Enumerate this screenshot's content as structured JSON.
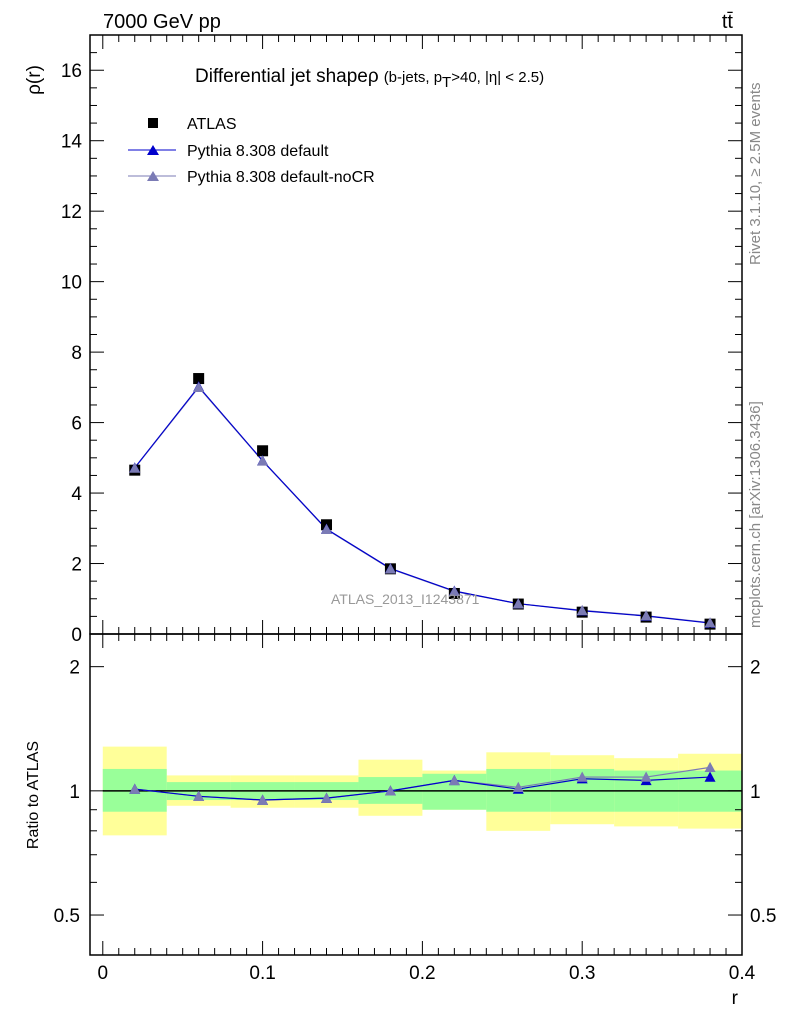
{
  "header": {
    "energy_label": "7000 GeV pp",
    "process_label": "tt̄"
  },
  "side_labels": {
    "rivet": "Rivet 3.1.10, ≥ 2.5M events",
    "mcplots": "mcplots.cern.ch [arXiv:1306.3436]"
  },
  "colors": {
    "data": "#000000",
    "default": "#0000cc",
    "nocr": "#7b7bb5",
    "band_inner": "#99ff99",
    "band_outer": "#ffff99"
  },
  "chart_data": [
    {
      "type": "scatter",
      "title_main": "Differential jet shapeρ",
      "title_cut_prefix": "(b-jets, p",
      "title_cut_sub": "T",
      "title_cut_suffix": ">40, |η| < 2.5)",
      "ylabel": "ρ(r)",
      "xlabel": "r",
      "watermark": "ATLAS_2013_I1243871",
      "ylim": [
        0,
        17
      ],
      "xlim": [
        -0.008,
        0.4
      ],
      "y_ticks": [
        0,
        2,
        4,
        6,
        8,
        10,
        12,
        14,
        16
      ],
      "y_tick_labels": [
        "0",
        "2",
        "4",
        "6",
        "8",
        "10",
        "12",
        "14",
        "16"
      ],
      "legend_position": "top-left",
      "x": [
        0.02,
        0.06,
        0.1,
        0.14,
        0.18,
        0.22,
        0.26,
        0.3,
        0.34,
        0.38
      ],
      "series": [
        {
          "name": "ATLAS",
          "marker": "square",
          "values": [
            4.65,
            7.25,
            5.2,
            3.1,
            1.85,
            1.15,
            0.85,
            0.62,
            0.48,
            0.28
          ]
        },
        {
          "name": "Pythia 8.308 default",
          "marker": "triangle",
          "values": [
            4.72,
            7.02,
            4.92,
            2.98,
            1.86,
            1.22,
            0.86,
            0.66,
            0.51,
            0.31
          ]
        },
        {
          "name": "Pythia 8.308 default-noCR",
          "marker": "triangle",
          "values": [
            4.71,
            7.0,
            4.91,
            2.97,
            1.85,
            1.21,
            0.86,
            0.67,
            0.52,
            0.32
          ]
        }
      ]
    },
    {
      "type": "line",
      "ylabel": "Ratio to ATLAS",
      "xlabel": "r",
      "scale": "log",
      "ylim": [
        0.4,
        2.4
      ],
      "xlim": [
        -0.008,
        0.4
      ],
      "y_ticks": [
        0.5,
        1,
        2
      ],
      "y_tick_labels": [
        "0.5",
        "1",
        "2"
      ],
      "x_ticks": [
        0,
        0.1,
        0.2,
        0.3,
        0.4
      ],
      "x_tick_labels": [
        "0",
        "0.1",
        "0.2",
        "0.3",
        "0.4"
      ],
      "x": [
        0.02,
        0.06,
        0.1,
        0.14,
        0.18,
        0.22,
        0.26,
        0.3,
        0.34,
        0.38
      ],
      "bins": [
        [
          0.0,
          0.04
        ],
        [
          0.04,
          0.08
        ],
        [
          0.08,
          0.12
        ],
        [
          0.12,
          0.16
        ],
        [
          0.16,
          0.2
        ],
        [
          0.2,
          0.24
        ],
        [
          0.24,
          0.28
        ],
        [
          0.28,
          0.32
        ],
        [
          0.32,
          0.36
        ],
        [
          0.36,
          0.4
        ]
      ],
      "band_inner": [
        [
          0.89,
          1.13
        ],
        [
          0.95,
          1.05
        ],
        [
          0.95,
          1.05
        ],
        [
          0.95,
          1.05
        ],
        [
          0.93,
          1.08
        ],
        [
          0.9,
          1.1
        ],
        [
          0.89,
          1.13
        ],
        [
          0.89,
          1.13
        ],
        [
          0.89,
          1.12
        ],
        [
          0.89,
          1.12
        ]
      ],
      "band_outer": [
        [
          0.78,
          1.28
        ],
        [
          0.92,
          1.09
        ],
        [
          0.91,
          1.09
        ],
        [
          0.91,
          1.09
        ],
        [
          0.87,
          1.19
        ],
        [
          0.9,
          1.12
        ],
        [
          0.8,
          1.24
        ],
        [
          0.83,
          1.22
        ],
        [
          0.82,
          1.2
        ],
        [
          0.81,
          1.23
        ]
      ],
      "series": [
        {
          "name": "Pythia 8.308 default",
          "values": [
            1.01,
            0.97,
            0.95,
            0.96,
            1.0,
            1.06,
            1.01,
            1.07,
            1.06,
            1.08
          ]
        },
        {
          "name": "Pythia 8.308 default-noCR",
          "values": [
            1.01,
            0.97,
            0.95,
            0.96,
            1.0,
            1.06,
            1.02,
            1.08,
            1.08,
            1.14
          ]
        }
      ]
    }
  ]
}
